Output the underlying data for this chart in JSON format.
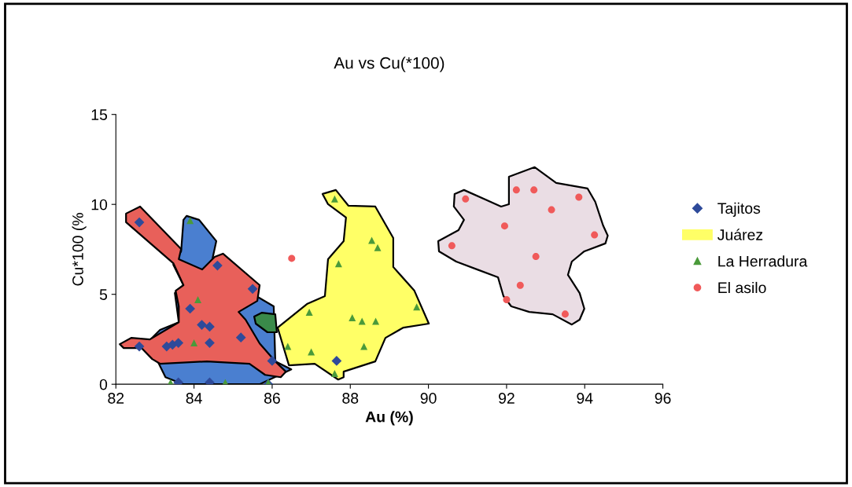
{
  "chart_data": {
    "type": "scatter",
    "title": "Au vs Cu(*100)",
    "xlabel": "Au (%)",
    "ylabel": "Cu*100 (%",
    "xlim": [
      82,
      96
    ],
    "xticks": [
      82,
      84,
      86,
      88,
      90,
      92,
      94,
      96
    ],
    "ylim": [
      0,
      15
    ],
    "yticks": [
      0,
      5,
      10,
      15
    ],
    "grid": false,
    "legend": "right",
    "series": [
      {
        "name": "Tajitos",
        "marker": "diamond",
        "color": "#2e4a9a",
        "x": [
          82.6,
          82.6,
          83.3,
          83.45,
          83.6,
          84.4,
          83.9,
          84.2,
          84.4,
          84.6,
          85.5,
          85.2,
          86.0,
          83.6,
          84.4,
          85.9,
          87.65
        ],
        "values": [
          9.0,
          2.1,
          2.1,
          2.2,
          2.3,
          2.3,
          4.2,
          3.3,
          3.2,
          6.6,
          5.3,
          2.6,
          1.3,
          0.1,
          0.1,
          0.0,
          1.3
        ]
      },
      {
        "name": "Juárez",
        "type": "area",
        "color": "#ffff66",
        "x": [
          87.29,
          87.63,
          87.95,
          88.64,
          89.1,
          89.1,
          89.64,
          90.01,
          89.36,
          88.9,
          88.64,
          87.83,
          87.83,
          87.69,
          87.09,
          86.43,
          86.14,
          86.89,
          87.35,
          87.43,
          87.83,
          87.89,
          87.43
        ],
        "values": [
          10.58,
          10.8,
          9.93,
          9.88,
          8.13,
          6.52,
          5.2,
          3.37,
          3.15,
          2.58,
          1.27,
          0.7,
          0.39,
          0.26,
          1.14,
          1.05,
          3.15,
          4.46,
          4.9,
          6.95,
          7.96,
          9.27,
          10.01
        ]
      },
      {
        "name": "La Herradura",
        "marker": "triangle",
        "color": "#4a9a3a",
        "x": [
          83.9,
          84.1,
          84.0,
          83.4,
          84.8,
          85.9,
          87.6,
          88.55,
          88.7,
          87.7,
          86.95,
          89.7,
          88.05,
          88.3,
          88.65,
          86.4,
          87.0,
          88.35,
          87.6
        ],
        "values": [
          9.1,
          4.7,
          2.3,
          0.1,
          0.1,
          0.1,
          10.3,
          8.0,
          7.6,
          6.7,
          4.0,
          4.3,
          3.7,
          3.5,
          3.5,
          2.1,
          1.8,
          2.1,
          0.6
        ]
      },
      {
        "name": "El asilo",
        "marker": "circle",
        "color": "#f05a5a",
        "x": [
          86.5,
          90.95,
          92.25,
          92.7,
          93.85,
          93.15,
          91.95,
          94.25,
          90.6,
          92.75,
          92.35,
          92.0,
          93.5
        ],
        "values": [
          7.0,
          10.3,
          10.8,
          10.8,
          10.4,
          9.7,
          8.8,
          8.3,
          7.7,
          7.1,
          5.5,
          4.7,
          3.9
        ]
      },
      {
        "type": "area",
        "color": "#eadde4",
        "x": [
          90.67,
          90.91,
          91.86,
          92.06,
          92.06,
          92.72,
          93.27,
          94.07,
          94.27,
          94.47,
          94.59,
          94.53,
          93.99,
          93.67,
          93.57,
          93.87,
          93.99,
          93.87,
          93.67,
          93.18,
          92.58,
          92.12,
          91.92,
          91.78,
          91.25,
          90.71,
          90.27,
          90.25,
          90.77,
          90.91,
          90.65
        ],
        "values": [
          10.58,
          10.8,
          9.88,
          10.01,
          11.54,
          12.07,
          11.19,
          10.89,
          10.14,
          8.83,
          8.26,
          7.83,
          7.39,
          6.82,
          6.08,
          5.07,
          4.2,
          3.59,
          3.32,
          3.89,
          4.02,
          4.33,
          4.9,
          5.95,
          6.38,
          6.82,
          7.39,
          7.96,
          8.57,
          9.14,
          9.88
        ]
      },
      {
        "type": "area",
        "color": "#4a7fd0",
        "x": [
          83.81,
          84.13,
          84.57,
          84.47,
          84.33,
          86.04,
          86.08,
          86.49,
          null,
          85.68,
          83.73,
          83.27,
          83.07,
          82.87,
          83.13,
          83.61,
          null,
          83.51,
          83.73,
          83.47,
          83.67,
          83.73
        ],
        "values": [
          9.36,
          9.14,
          7.96,
          6.95,
          6.52,
          4.33,
          1.27,
          0.83,
          null,
          0.0,
          0.0,
          0.39,
          1.27,
          2.45,
          3.02,
          3.45,
          null,
          5.07,
          5.51,
          6.65,
          7.39,
          9.14
        ]
      },
      {
        "type": "area",
        "color": "#e8605a",
        "x": [
          82.26,
          82.62,
          83.67,
          83.61,
          84.21,
          84.53,
          84.74,
          85.68,
          85.62,
          85.14,
          85.32,
          85.68,
          86.08,
          86.35,
          86.22,
          85.82,
          85.42,
          84.33,
          83.13,
          82.93,
          82.66,
          82.2,
          82.1,
          82.4,
          82.87,
          83.61,
          83.61,
          83.53,
          83.73,
          83.47,
          82.26
        ],
        "values": [
          9.49,
          9.88,
          7.52,
          6.95,
          6.38,
          7.08,
          7.26,
          5.51,
          4.63,
          4.02,
          3.59,
          2.27,
          1.27,
          0.7,
          0.39,
          0.52,
          1.14,
          1.27,
          1.14,
          1.4,
          2.01,
          2.01,
          2.23,
          2.58,
          2.49,
          3.45,
          4.33,
          5.2,
          5.51,
          6.73,
          9.01
        ]
      },
      {
        "type": "area",
        "color": "#3a8a4a",
        "x": [
          85.54,
          85.74,
          86.08,
          86.12,
          85.88,
          85.58
        ],
        "values": [
          3.76,
          3.98,
          3.89,
          2.89,
          2.89,
          3.37
        ]
      }
    ]
  }
}
